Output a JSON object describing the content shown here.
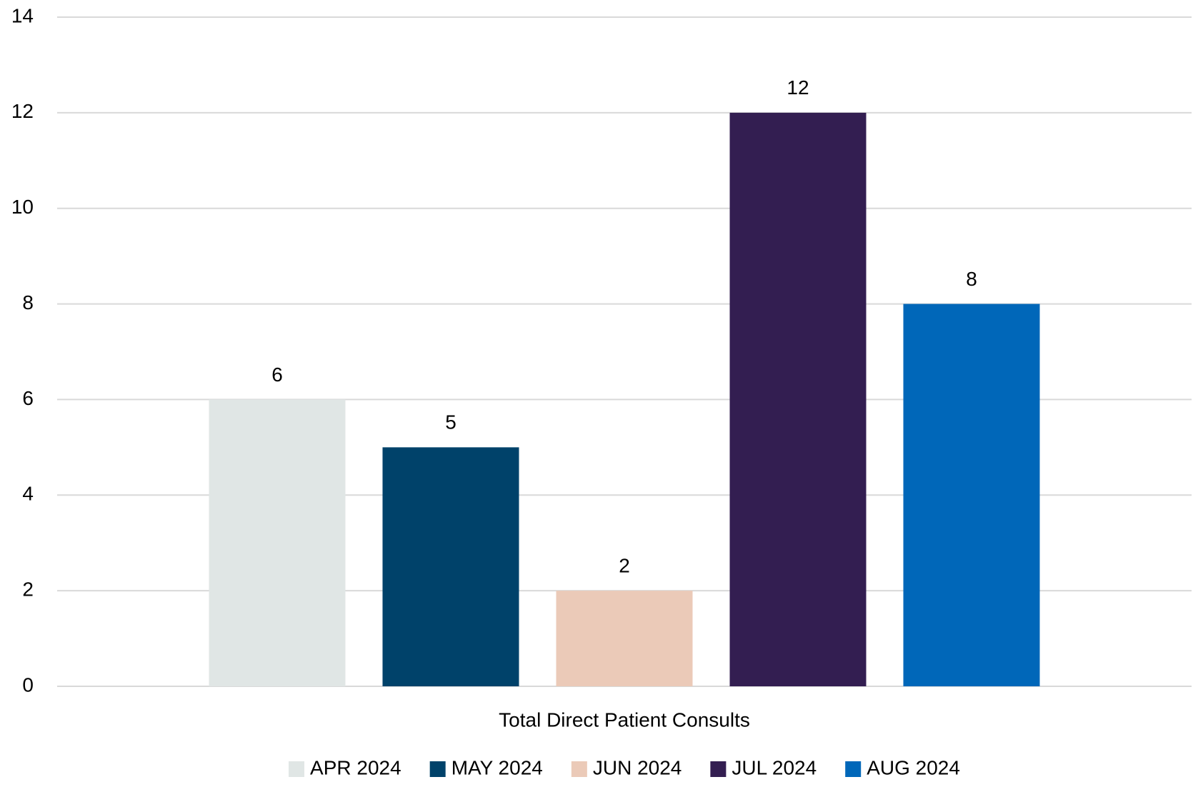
{
  "chart_data": {
    "type": "bar",
    "categories": [
      "Total Direct Patient Consults"
    ],
    "series": [
      {
        "name": "APR 2024",
        "color": "#e0e6e5",
        "values": [
          6
        ]
      },
      {
        "name": "MAY 2024",
        "color": "#00426a",
        "values": [
          5
        ]
      },
      {
        "name": "JUN 2024",
        "color": "#ebcab8",
        "values": [
          2
        ]
      },
      {
        "name": "JUL 2024",
        "color": "#331e51",
        "values": [
          12
        ]
      },
      {
        "name": "AUG 2024",
        "color": "#0067b9",
        "values": [
          8
        ]
      }
    ],
    "ylim": [
      0,
      14
    ],
    "yticks": [
      0,
      2,
      4,
      6,
      8,
      10,
      12,
      14
    ],
    "grid": true,
    "legend": "bottom"
  }
}
